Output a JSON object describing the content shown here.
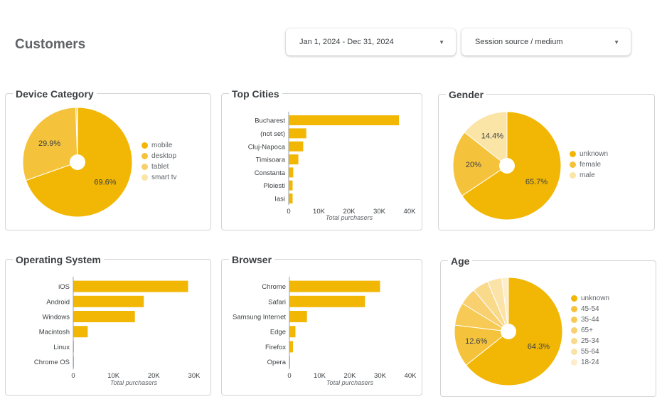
{
  "page": {
    "title": "Customers"
  },
  "filters": {
    "date_range": "Jan 1, 2024 - Dec 31, 2024",
    "dimension": "Session source / medium"
  },
  "colors": {
    "palette": [
      "#f2b705",
      "#f5c33b",
      "#f7d06c",
      "#fae4a6",
      "#f8d98a",
      "#fbe6b0",
      "#fdf0cf"
    ]
  },
  "panels": {
    "device": {
      "title": "Device Category"
    },
    "cities": {
      "title": "Top Cities"
    },
    "gender": {
      "title": "Gender"
    },
    "os": {
      "title": "Operating System"
    },
    "browser": {
      "title": "Browser"
    },
    "age": {
      "title": "Age"
    }
  },
  "chart_data": [
    {
      "id": "device",
      "type": "pie",
      "title": "Device Category",
      "labels": [
        "mobile",
        "desktop",
        "tablet",
        "smart tv"
      ],
      "values": [
        69.6,
        29.9,
        0.4,
        0.1
      ],
      "shown_labels": [
        "69.6%",
        "29.9%",
        "",
        ""
      ],
      "colors": [
        "#f2b705",
        "#f5c33b",
        "#f7d06c",
        "#fae4a6"
      ],
      "legend": "right"
    },
    {
      "id": "cities",
      "type": "bar",
      "orientation": "horizontal",
      "title": "Top Cities",
      "categories": [
        "Bucharest",
        "(not set)",
        "Cluj-Napoca",
        "Timisoara",
        "Constanta",
        "Ploiesti",
        "Iasi"
      ],
      "values": [
        36500,
        5800,
        4800,
        3200,
        1500,
        1300,
        1300
      ],
      "xlabel": "Total purchasers",
      "xlim": [
        0,
        40000
      ],
      "xticks": [
        "0",
        "10K",
        "20K",
        "30K",
        "40K"
      ],
      "color": "#f2b705"
    },
    {
      "id": "gender",
      "type": "pie",
      "title": "Gender",
      "labels": [
        "unknown",
        "female",
        "male"
      ],
      "values": [
        65.7,
        20,
        14.4
      ],
      "shown_labels": [
        "65.7%",
        "20%",
        "14.4%"
      ],
      "colors": [
        "#f2b705",
        "#f5c33b",
        "#fae4a6"
      ],
      "legend": "right"
    },
    {
      "id": "os",
      "type": "bar",
      "orientation": "horizontal",
      "title": "Operating System",
      "categories": [
        "iOS",
        "Android",
        "Windows",
        "Macintosh",
        "Linux",
        "Chrome OS"
      ],
      "values": [
        28500,
        17500,
        15300,
        3600,
        150,
        50
      ],
      "xlabel": "Total purchasers",
      "xlim": [
        0,
        30000
      ],
      "xticks": [
        "0",
        "10K",
        "20K",
        "30K"
      ],
      "color": "#f2b705"
    },
    {
      "id": "browser",
      "type": "bar",
      "orientation": "horizontal",
      "title": "Browser",
      "categories": [
        "Chrome",
        "Safari",
        "Samsung Internet",
        "Edge",
        "Firefox",
        "Opera"
      ],
      "values": [
        30000,
        25000,
        5800,
        2000,
        1200,
        200
      ],
      "xlabel": "Total purchasers",
      "xlim": [
        0,
        40000
      ],
      "xticks": [
        "0",
        "10K",
        "20K",
        "30K",
        "40K"
      ],
      "color": "#f2b705"
    },
    {
      "id": "age",
      "type": "pie",
      "title": "Age",
      "labels": [
        "unknown",
        "45-54",
        "35-44",
        "65+",
        "25-34",
        "55-64",
        "18-24"
      ],
      "values": [
        64.3,
        12.6,
        6.8,
        5.2,
        4.8,
        4.3,
        2.0
      ],
      "shown_labels": [
        "64.3%",
        "12.6%",
        "",
        "",
        "",
        "",
        ""
      ],
      "colors": [
        "#f2b705",
        "#f5c33b",
        "#f7ca55",
        "#f8d070",
        "#f9d98a",
        "#fbe3a8",
        "#fdedcb"
      ],
      "legend": "right"
    }
  ]
}
